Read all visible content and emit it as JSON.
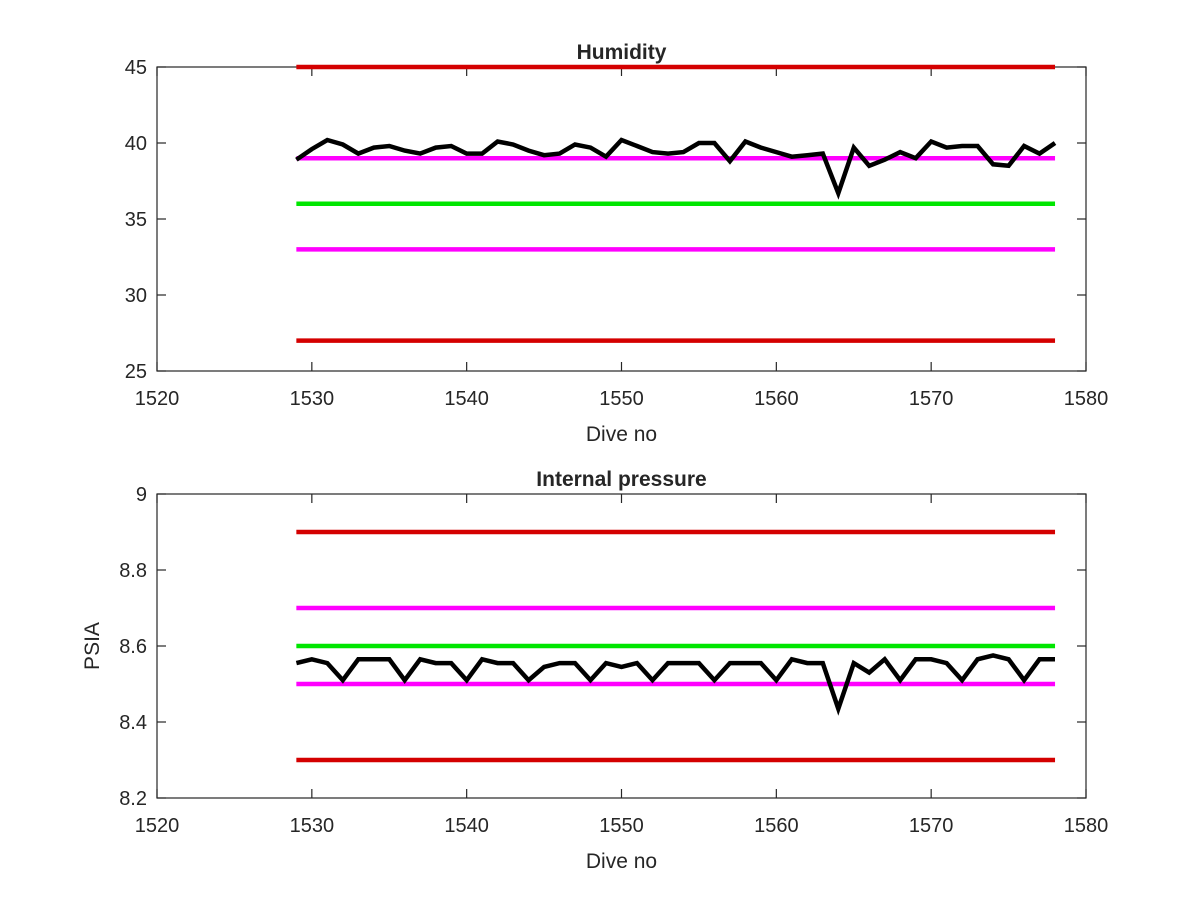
{
  "chart_data": [
    {
      "type": "line",
      "title": "Humidity",
      "xlabel": "Dive no",
      "ylabel": "",
      "xlim": [
        1520,
        1580
      ],
      "ylim": [
        25,
        45
      ],
      "xticks": [
        "1520",
        "1530",
        "1540",
        "1550",
        "1560",
        "1570",
        "1580"
      ],
      "yticks": [
        "25",
        "30",
        "35",
        "40",
        "45"
      ],
      "grid": false,
      "thresholds": [
        {
          "y": 45,
          "x": [
            1529,
            1578
          ],
          "color": "#d40000"
        },
        {
          "y": 39,
          "x": [
            1529,
            1578
          ],
          "color": "#ff00ff"
        },
        {
          "y": 36,
          "x": [
            1529,
            1578
          ],
          "color": "#00e600"
        },
        {
          "y": 33,
          "x": [
            1529,
            1578
          ],
          "color": "#ff00ff"
        },
        {
          "y": 27,
          "x": [
            1529,
            1578
          ],
          "color": "#d40000"
        }
      ],
      "series": [
        {
          "color": "#000000",
          "x": [
            1529,
            1530,
            1531,
            1532,
            1533,
            1534,
            1535,
            1536,
            1537,
            1538,
            1539,
            1540,
            1541,
            1542,
            1543,
            1544,
            1545,
            1546,
            1547,
            1548,
            1549,
            1550,
            1551,
            1552,
            1553,
            1554,
            1555,
            1556,
            1557,
            1558,
            1559,
            1560,
            1561,
            1562,
            1563,
            1564,
            1565,
            1566,
            1567,
            1568,
            1569,
            1570,
            1571,
            1572,
            1573,
            1574,
            1575,
            1576,
            1577,
            1578
          ],
          "values": [
            38.9,
            39.6,
            40.2,
            39.9,
            39.3,
            39.7,
            39.8,
            39.5,
            39.3,
            39.7,
            39.8,
            39.3,
            39.3,
            40.1,
            39.9,
            39.5,
            39.2,
            39.3,
            39.9,
            39.7,
            39.1,
            40.2,
            39.8,
            39.4,
            39.3,
            39.4,
            40,
            40,
            38.8,
            40.1,
            39.7,
            39.4,
            39.1,
            39.2,
            39.3,
            36.7,
            39.7,
            38.5,
            38.9,
            39.4,
            39,
            40.1,
            39.7,
            39.8,
            39.8,
            38.6,
            38.5,
            39.8,
            39.3,
            40
          ]
        }
      ]
    },
    {
      "type": "line",
      "title": "Internal pressure",
      "xlabel": "Dive no",
      "ylabel": "PSIA",
      "xlim": [
        1520,
        1580
      ],
      "ylim": [
        8.2,
        9
      ],
      "xticks": [
        "1520",
        "1530",
        "1540",
        "1550",
        "1560",
        "1570",
        "1580"
      ],
      "yticks": [
        "8.2",
        "8.4",
        "8.6",
        "8.8",
        "9"
      ],
      "grid": false,
      "thresholds": [
        {
          "y": 8.9,
          "x": [
            1529,
            1578
          ],
          "color": "#d40000"
        },
        {
          "y": 8.7,
          "x": [
            1529,
            1578
          ],
          "color": "#ff00ff"
        },
        {
          "y": 8.6,
          "x": [
            1529,
            1578
          ],
          "color": "#00e600"
        },
        {
          "y": 8.5,
          "x": [
            1529,
            1578
          ],
          "color": "#ff00ff"
        },
        {
          "y": 8.3,
          "x": [
            1529,
            1578
          ],
          "color": "#d40000"
        }
      ],
      "series": [
        {
          "color": "#000000",
          "x": [
            1529,
            1530,
            1531,
            1532,
            1533,
            1534,
            1535,
            1536,
            1537,
            1538,
            1539,
            1540,
            1541,
            1542,
            1543,
            1544,
            1545,
            1546,
            1547,
            1548,
            1549,
            1550,
            1551,
            1552,
            1553,
            1554,
            1555,
            1556,
            1557,
            1558,
            1559,
            1560,
            1561,
            1562,
            1563,
            1564,
            1565,
            1566,
            1567,
            1568,
            1569,
            1570,
            1571,
            1572,
            1573,
            1574,
            1575,
            1576,
            1577,
            1578
          ],
          "values": [
            8.555,
            8.565,
            8.555,
            8.51,
            8.565,
            8.565,
            8.565,
            8.51,
            8.565,
            8.555,
            8.555,
            8.51,
            8.565,
            8.555,
            8.555,
            8.51,
            8.545,
            8.555,
            8.555,
            8.51,
            8.555,
            8.545,
            8.555,
            8.51,
            8.555,
            8.555,
            8.555,
            8.51,
            8.555,
            8.555,
            8.555,
            8.51,
            8.565,
            8.555,
            8.555,
            8.435,
            8.555,
            8.53,
            8.565,
            8.51,
            8.565,
            8.565,
            8.555,
            8.51,
            8.565,
            8.575,
            8.565,
            8.51,
            8.565,
            8.565
          ]
        }
      ]
    }
  ]
}
